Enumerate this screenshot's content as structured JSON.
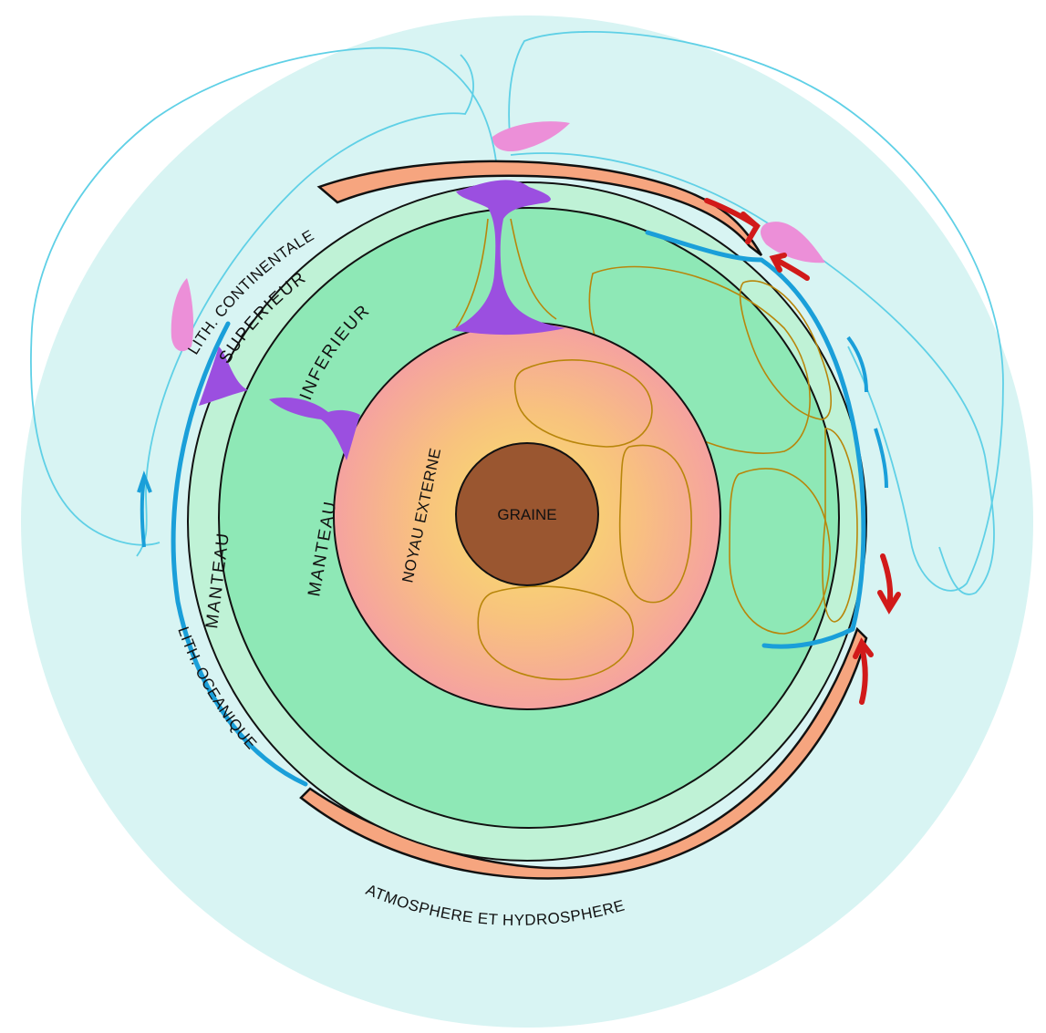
{
  "labels": {
    "lith_continentale": "LITH. CONTINENTALE",
    "manteau_superieur": "SUPERIEUR",
    "manteau_inferieur": "INFERIEUR",
    "manteau_left": "MANTEAU",
    "manteau_inner": "MANTEAU",
    "noyau_externe": "NOYAU EXTERNE",
    "graine": "GRAINE",
    "lith_oceanique": "LITH. OCEANIQUE",
    "atmosphere": "ATMOSPHERE ET HYDROSPHERE"
  },
  "colors": {
    "atmosphere": "#d8f4f3",
    "upper_mantle": "#bff2d6",
    "lower_mantle": "#8ee8b6",
    "continental_lithosphere": "#f6a57f",
    "outer_core": "#f5a2a0",
    "core_glow": "#f6d76a",
    "inner_core": "#9a5630",
    "oceanic_lithosphere": "#1a9fd9",
    "magma": "#9b4fe0",
    "volcanic_plume": "#ec8fd8",
    "fault_arrows": "#d11a1a",
    "convection_cells": "#b8860b",
    "atmospheric_circulation": "#5fd0e6"
  }
}
